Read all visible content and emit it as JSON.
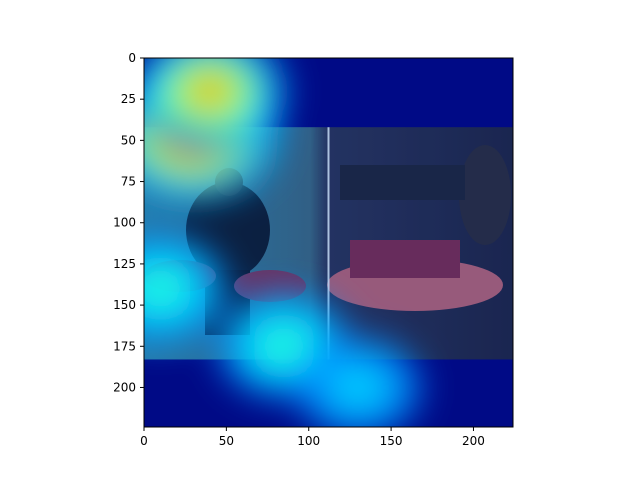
{
  "chart_data": {
    "type": "heatmap",
    "title": "",
    "xlabel": "",
    "ylabel": "",
    "xlim": [
      0,
      224
    ],
    "ylim": [
      224,
      0
    ],
    "xticks": [
      0,
      50,
      100,
      150,
      200
    ],
    "yticks": [
      0,
      25,
      50,
      75,
      100,
      125,
      150,
      175,
      200
    ],
    "colormap": "jet",
    "photo_region": {
      "x": [
        0,
        224
      ],
      "y": [
        42,
        183
      ]
    },
    "divider_x": 112,
    "heat_peaks": [
      {
        "x": 30,
        "y": 45,
        "intensity": 1.0
      },
      {
        "x": 40,
        "y": 20,
        "intensity": 0.75
      },
      {
        "x": 10,
        "y": 140,
        "intensity": 0.45
      },
      {
        "x": 85,
        "y": 175,
        "intensity": 0.45
      },
      {
        "x": 130,
        "y": 200,
        "intensity": 0.35
      }
    ]
  }
}
